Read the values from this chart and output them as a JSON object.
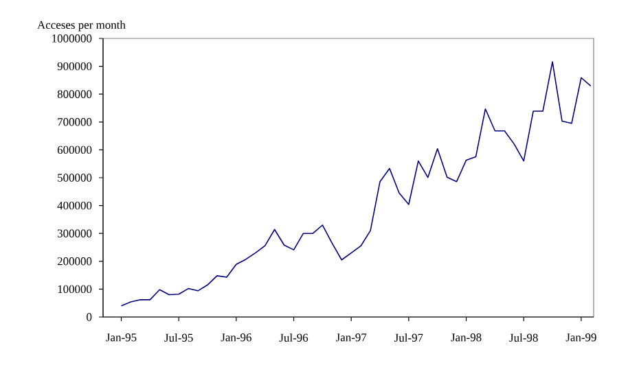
{
  "chart_data": {
    "type": "line",
    "ylabel": "Acceses per month",
    "categories": [
      "Jan-95",
      null,
      null,
      null,
      null,
      null,
      "Jul-95",
      null,
      null,
      null,
      null,
      null,
      "Jan-96",
      null,
      null,
      null,
      null,
      null,
      "Jul-96",
      null,
      null,
      null,
      null,
      null,
      "Jan-97",
      null,
      null,
      null,
      null,
      null,
      "Jul-97",
      null,
      null,
      null,
      null,
      null,
      "Jan-98",
      null,
      null,
      null,
      null,
      null,
      "Jul-98",
      null,
      null,
      null,
      null,
      null,
      "Jan-99",
      null
    ],
    "series": [
      {
        "color": "#000080",
        "values": [
          40000,
          54000,
          62000,
          62000,
          98000,
          80000,
          82000,
          102000,
          94000,
          115000,
          148000,
          143000,
          189000,
          207000,
          230000,
          256000,
          314000,
          258000,
          241000,
          300000,
          300000,
          330000,
          265000,
          205000,
          230000,
          255000,
          310000,
          486000,
          533000,
          445000,
          404000,
          560000,
          501000,
          604000,
          502000,
          486000,
          563000,
          575000,
          747000,
          668000,
          668000,
          621000,
          560000,
          739000,
          739000,
          916000,
          703000,
          695000,
          859000,
          829000
        ]
      }
    ],
    "ylim": [
      0,
      1000000
    ],
    "yticks": [
      0,
      100000,
      200000,
      300000,
      400000,
      500000,
      600000,
      700000,
      800000,
      900000,
      1000000
    ],
    "marker": "none",
    "line_style": "solid"
  }
}
